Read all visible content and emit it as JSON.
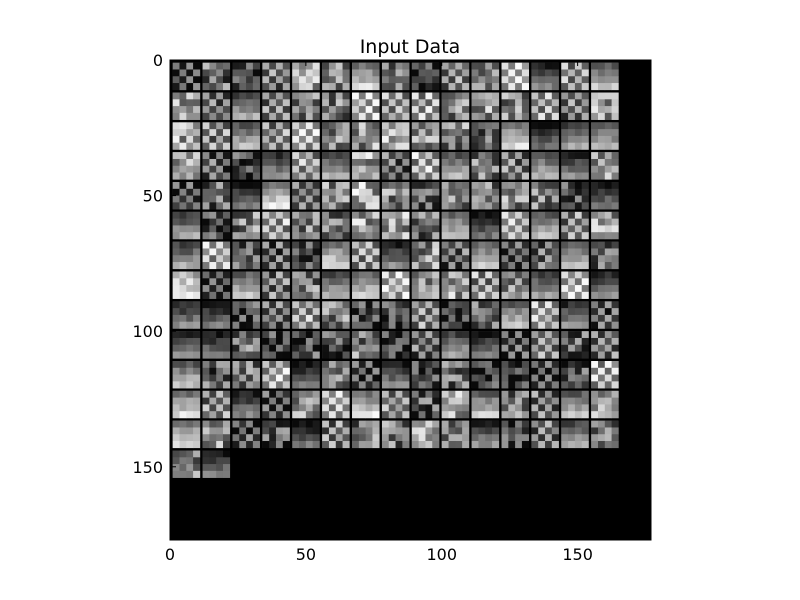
{
  "chart_data": {
    "type": "heatmap",
    "title": "Input Data",
    "xlabel": "",
    "ylabel": "",
    "xlim": [
      0,
      177
    ],
    "ylim": [
      177,
      0
    ],
    "xticks": [
      0,
      50,
      100,
      150
    ],
    "yticks": [
      0,
      50,
      100,
      150
    ],
    "colormap": "gray",
    "grid": false,
    "mosaic": {
      "tile_count": 197,
      "columns": 15,
      "rows": 14,
      "tile_size": 10,
      "padding": 1
    }
  }
}
